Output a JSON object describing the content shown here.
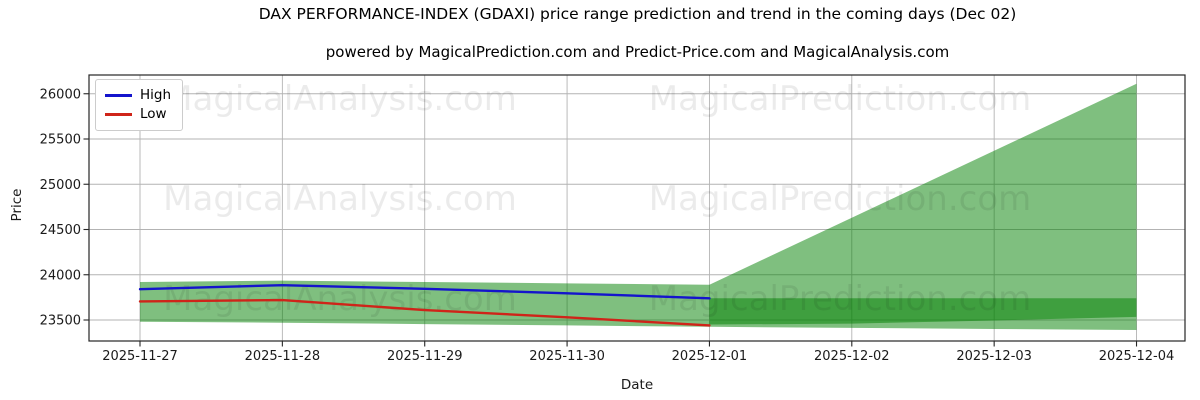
{
  "chart_data": {
    "type": "line",
    "title": "DAX PERFORMANCE-INDEX (GDAXI) price range prediction and trend in the coming days (Dec 02)",
    "subtitle": "powered by MagicalPrediction.com and Predict-Price.com and MagicalAnalysis.com",
    "xlabel": "Date",
    "ylabel": "Price",
    "dates": [
      "2025-11-27",
      "2025-11-28",
      "2025-11-29",
      "2025-11-30",
      "2025-12-01",
      "2025-12-02",
      "2025-12-03",
      "2025-12-04"
    ],
    "yticks": [
      23500,
      24000,
      24500,
      25000,
      25500,
      26000
    ],
    "ylim": [
      23270,
      26210
    ],
    "grid": true,
    "legend_position": "upper left",
    "series": [
      {
        "name": "High",
        "color": "#1414cc",
        "dates": [
          "2025-11-27",
          "2025-11-28",
          "2025-11-29",
          "2025-11-30",
          "2025-12-01"
        ],
        "values": [
          23840,
          23885,
          23845,
          23795,
          23740
        ]
      },
      {
        "name": "Low",
        "color": "#cf2419",
        "dates": [
          "2025-11-27",
          "2025-11-28",
          "2025-11-29",
          "2025-11-30",
          "2025-12-01"
        ],
        "values": [
          23705,
          23720,
          23610,
          23530,
          23440
        ]
      }
    ],
    "bands": [
      {
        "name": "forecast-uncertainty-band",
        "fill": "#008000",
        "opacity": 0.5,
        "start_index": 0,
        "upper": [
          23920,
          23935,
          23920,
          23905,
          23890,
          24630,
          25370,
          26110
        ],
        "lower": [
          23480,
          23470,
          23455,
          23440,
          23425,
          23413,
          23401,
          23390
        ]
      },
      {
        "name": "predicted-high-low-band",
        "fill": "#008000",
        "opacity": 0.5,
        "start_index": 4,
        "upper": [
          23740,
          23740,
          23740,
          23740
        ],
        "lower": [
          23450,
          23460,
          23495,
          23535
        ]
      }
    ],
    "watermarks": [
      "MagicalAnalysis.com",
      "MagicalPrediction.com"
    ]
  },
  "colors": {
    "grid": "#b3b3b3",
    "axis_border": "#262626",
    "tick_text": "#1a1a1a",
    "watermark": "#000000"
  }
}
